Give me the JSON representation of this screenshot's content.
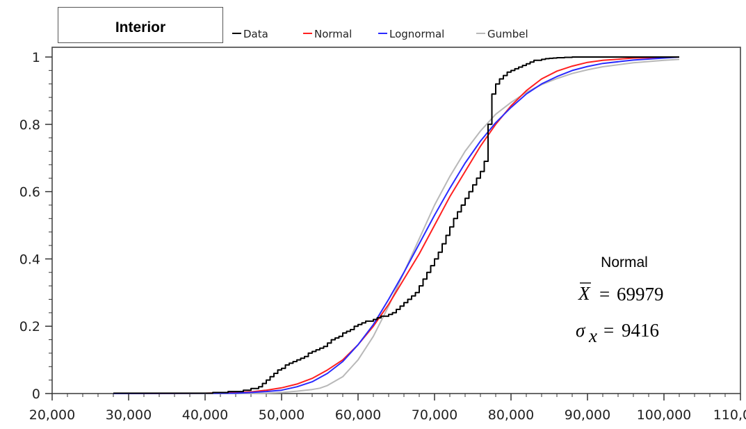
{
  "chart_data": {
    "type": "line",
    "title": "Interior",
    "xlim": [
      20000,
      110000
    ],
    "ylim": [
      0,
      1
    ],
    "x_ticks": [
      20000,
      30000,
      40000,
      50000,
      60000,
      70000,
      80000,
      90000,
      100000,
      110000
    ],
    "x_tick_labels": [
      "20,000",
      "30,000",
      "40,000",
      "50,000",
      "60,000",
      "70,000",
      "80,000",
      "90,000",
      "100,000",
      "110,000"
    ],
    "y_ticks": [
      0,
      0.2,
      0.4,
      0.6,
      0.8,
      1
    ],
    "y_tick_labels": [
      "0",
      "0.2",
      "0.4",
      "0.6",
      "0.8",
      "1"
    ],
    "legend_position": "top",
    "series": [
      {
        "name": "Data",
        "color": "#000000",
        "step": true,
        "x": [
          28000,
          41000,
          43000,
          45000,
          46000,
          47000,
          47500,
          48000,
          48500,
          49000,
          49500,
          50000,
          50500,
          51000,
          51500,
          52000,
          52500,
          53000,
          53500,
          54000,
          54500,
          55000,
          55500,
          56000,
          56500,
          57000,
          57500,
          58000,
          58500,
          59000,
          59500,
          60000,
          60500,
          61000,
          61500,
          62000,
          62500,
          63000,
          63500,
          64000,
          64500,
          65000,
          65500,
          66000,
          66500,
          67000,
          67500,
          68000,
          68500,
          69000,
          69500,
          70000,
          70500,
          71000,
          71500,
          72000,
          72500,
          73000,
          73500,
          74000,
          74500,
          75000,
          75500,
          76000,
          76500,
          77000,
          77500,
          78000,
          78500,
          79000,
          79500,
          80000,
          80500,
          81000,
          81500,
          82000,
          82500,
          83000,
          83500,
          84000,
          84500,
          85000,
          85500,
          86000,
          87000,
          88000,
          89000,
          91000,
          102000
        ],
        "y": [
          0.001,
          0.003,
          0.006,
          0.01,
          0.015,
          0.02,
          0.03,
          0.04,
          0.05,
          0.06,
          0.07,
          0.075,
          0.085,
          0.09,
          0.095,
          0.1,
          0.105,
          0.11,
          0.12,
          0.125,
          0.13,
          0.135,
          0.14,
          0.15,
          0.16,
          0.165,
          0.17,
          0.18,
          0.185,
          0.19,
          0.2,
          0.205,
          0.21,
          0.215,
          0.215,
          0.22,
          0.225,
          0.23,
          0.23,
          0.235,
          0.24,
          0.25,
          0.26,
          0.27,
          0.28,
          0.29,
          0.3,
          0.32,
          0.34,
          0.36,
          0.38,
          0.4,
          0.42,
          0.445,
          0.47,
          0.495,
          0.52,
          0.54,
          0.56,
          0.58,
          0.6,
          0.62,
          0.64,
          0.66,
          0.69,
          0.8,
          0.89,
          0.92,
          0.935,
          0.945,
          0.955,
          0.96,
          0.965,
          0.97,
          0.975,
          0.98,
          0.985,
          0.99,
          0.99,
          0.993,
          0.995,
          0.996,
          0.997,
          0.998,
          0.999,
          1.0,
          1.0,
          1.0,
          1.0
        ]
      },
      {
        "name": "Normal",
        "color": "#ff2020",
        "x": [
          28000,
          40000,
          44000,
          46000,
          48000,
          50000,
          52000,
          54000,
          56000,
          58000,
          60000,
          62000,
          64000,
          66000,
          68000,
          70000,
          72000,
          74000,
          76000,
          78000,
          80000,
          82000,
          84000,
          86000,
          88000,
          90000,
          92000,
          96000,
          100000,
          102000
        ],
        "y": [
          0.0,
          0.001,
          0.003,
          0.005,
          0.01,
          0.017,
          0.028,
          0.045,
          0.07,
          0.1,
          0.145,
          0.2,
          0.265,
          0.34,
          0.415,
          0.5,
          0.585,
          0.66,
          0.735,
          0.8,
          0.855,
          0.9,
          0.935,
          0.958,
          0.973,
          0.984,
          0.99,
          0.997,
          0.999,
          1.0
        ]
      },
      {
        "name": "Lognormal",
        "color": "#2a2aff",
        "x": [
          28000,
          44000,
          46000,
          48000,
          50000,
          52000,
          54000,
          56000,
          58000,
          60000,
          62000,
          64000,
          66000,
          68000,
          70000,
          72000,
          74000,
          76000,
          78000,
          80000,
          82000,
          84000,
          86000,
          88000,
          90000,
          92000,
          96000,
          100000,
          102000
        ],
        "y": [
          0.0,
          0.001,
          0.003,
          0.006,
          0.01,
          0.02,
          0.035,
          0.06,
          0.095,
          0.145,
          0.205,
          0.28,
          0.36,
          0.445,
          0.53,
          0.61,
          0.685,
          0.75,
          0.805,
          0.85,
          0.89,
          0.92,
          0.942,
          0.96,
          0.972,
          0.981,
          0.991,
          0.997,
          1.0
        ]
      },
      {
        "name": "Gumbel",
        "color": "#b8b8b8",
        "x": [
          28000,
          46000,
          48000,
          50000,
          52000,
          54000,
          55000,
          56000,
          58000,
          60000,
          62000,
          64000,
          66000,
          68000,
          70000,
          72000,
          74000,
          76000,
          78000,
          80000,
          82000,
          84000,
          86000,
          88000,
          90000,
          92000,
          96000,
          100000,
          102000
        ],
        "y": [
          0.0,
          0.0,
          0.001,
          0.003,
          0.007,
          0.012,
          0.016,
          0.024,
          0.05,
          0.1,
          0.17,
          0.26,
          0.36,
          0.46,
          0.56,
          0.645,
          0.72,
          0.78,
          0.83,
          0.865,
          0.895,
          0.918,
          0.936,
          0.951,
          0.962,
          0.971,
          0.983,
          0.99,
          0.993
        ]
      }
    ],
    "annotation": {
      "title": "Normal",
      "mean_symbol": "X",
      "mean_value": "69979",
      "sd_symbol": "σ",
      "sd_subscript": "x",
      "sd_value": "9416",
      "equals": "="
    }
  }
}
